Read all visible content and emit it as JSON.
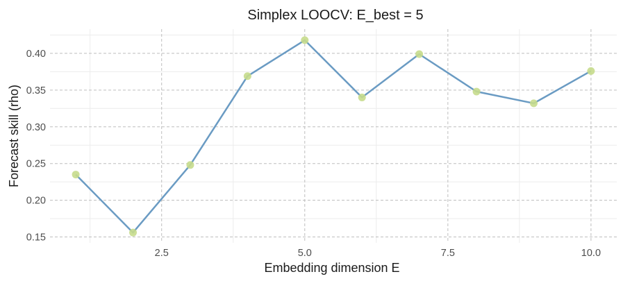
{
  "chart_data": {
    "type": "line",
    "title": "Simplex LOOCV: E_best = 5",
    "xlabel": "Embedding dimension E",
    "ylabel": "Forecast skill (rho)",
    "xlim": [
      0.55,
      10.45
    ],
    "ylim": [
      0.142,
      0.433
    ],
    "x_ticks": [
      2.5,
      5.0,
      7.5,
      10.0
    ],
    "x_tick_labels": [
      "2.5",
      "5.0",
      "7.5",
      "10.0"
    ],
    "y_ticks": [
      0.15,
      0.2,
      0.25,
      0.3,
      0.35,
      0.4
    ],
    "y_tick_labels": [
      "0.15",
      "0.20",
      "0.25",
      "0.30",
      "0.35",
      "0.40"
    ],
    "grid": true,
    "series": [
      {
        "x": [
          1,
          2,
          3,
          4,
          5,
          6,
          7,
          8,
          9,
          10
        ],
        "values": [
          0.235,
          0.156,
          0.248,
          0.369,
          0.418,
          0.34,
          0.399,
          0.348,
          0.332,
          0.376
        ],
        "line_color": "#6a9bc3",
        "point_color": "#c6dc8c"
      }
    ]
  }
}
